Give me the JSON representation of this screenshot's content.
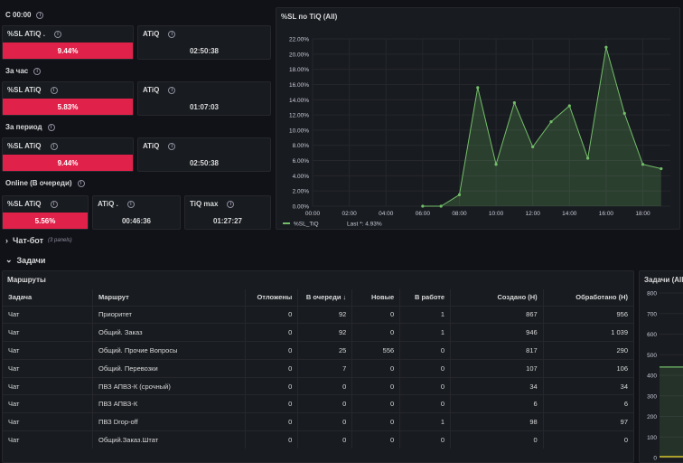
{
  "sections": {
    "since_midnight": "С 00:00",
    "per_hour": "За час",
    "per_period": "За период",
    "online": "Online (В очереди)"
  },
  "stats_midnight": {
    "sl_title": "%SL ATiQ .",
    "sl_value": "9.44%",
    "atiq_title": "ATiQ",
    "atiq_value": "02:50:38"
  },
  "stats_hour": {
    "sl_title": "%SL ATiQ",
    "sl_value": "5.83%",
    "atiq_title": "ATiQ",
    "atiq_value": "01:07:03"
  },
  "stats_period": {
    "sl_title": "%SL ATiQ",
    "sl_value": "9.44%",
    "atiq_title": "ATiQ",
    "atiq_value": "02:50:38"
  },
  "stats_online": {
    "sl_title": "%SL ATiQ",
    "sl_value": "5.56%",
    "atiq_title": "ATiQ .",
    "atiq_value": "00:46:36",
    "tiq_title": "TiQ max",
    "tiq_value": "01:27:27"
  },
  "chart_panel": {
    "title": "%SL по TiQ (All)"
  },
  "chart_data": {
    "type": "area",
    "title": "%SL по TiQ (All)",
    "y_ticks": [
      "0.00%",
      "2.00%",
      "4.00%",
      "6.00%",
      "8.00%",
      "10.00%",
      "12.00%",
      "14.00%",
      "16.00%",
      "18.00%",
      "20.00%",
      "22.00%"
    ],
    "x_ticks": [
      "00:00",
      "02:00",
      "04:00",
      "06:00",
      "08:00",
      "10:00",
      "12:00",
      "14:00",
      "16:00",
      "18:00"
    ],
    "ylim": [
      0,
      22
    ],
    "xlim": [
      0,
      19.5
    ],
    "series": [
      {
        "name": "%SL_TiQ",
        "color": "#73bf69",
        "x": [
          6,
          7,
          8,
          9,
          10,
          11,
          12,
          13,
          14,
          15,
          16,
          17,
          18,
          19
        ],
        "values": [
          0.0,
          0.0,
          1.5,
          15.6,
          5.5,
          13.6,
          7.8,
          11.1,
          13.2,
          6.3,
          20.9,
          12.2,
          5.5,
          4.93
        ]
      }
    ],
    "legend": {
      "label": "%SL_TiQ",
      "extra": "Last *: 4.93%"
    }
  },
  "rows": {
    "chatbot": "Чат-бот",
    "chatbot_sub": "(3 panels)",
    "tasks": "Задачи"
  },
  "routes_panel": {
    "title": "Маршруты",
    "columns": [
      "Задача",
      "Маршрут",
      "Отложены",
      "В очереди",
      "Новые",
      "В работе",
      "Создано (Н)",
      "Обработано (Н)"
    ],
    "sort_indicator": "↓",
    "rows": [
      [
        "Чат",
        "Приоритет",
        "0",
        "92",
        "0",
        "1",
        "867",
        "956"
      ],
      [
        "Чат",
        "Общий. Заказ",
        "0",
        "92",
        "0",
        "1",
        "946",
        "1 039"
      ],
      [
        "Чат",
        "Общий. Прочие Вопросы",
        "0",
        "25",
        "556",
        "0",
        "817",
        "290"
      ],
      [
        "Чат",
        "Общий. Перевозки",
        "0",
        "7",
        "0",
        "0",
        "107",
        "106"
      ],
      [
        "Чат",
        "ПВЗ АПВЗ-К (срочный)",
        "0",
        "0",
        "0",
        "0",
        "34",
        "34"
      ],
      [
        "Чат",
        "ПВЗ АПВЗ-К",
        "0",
        "0",
        "0",
        "0",
        "6",
        "6"
      ],
      [
        "Чат",
        "ПВЗ Drop-off",
        "0",
        "0",
        "0",
        "1",
        "98",
        "97"
      ],
      [
        "Чат",
        "Общий.Заказ.Штат",
        "0",
        "0",
        "0",
        "0",
        "0",
        "0"
      ]
    ]
  },
  "tasks_chart": {
    "title": "Задачи (All)",
    "y_ticks": [
      "0",
      "100",
      "200",
      "300",
      "400",
      "500",
      "600",
      "700",
      "800"
    ],
    "line_values": [
      440,
      0
    ]
  }
}
